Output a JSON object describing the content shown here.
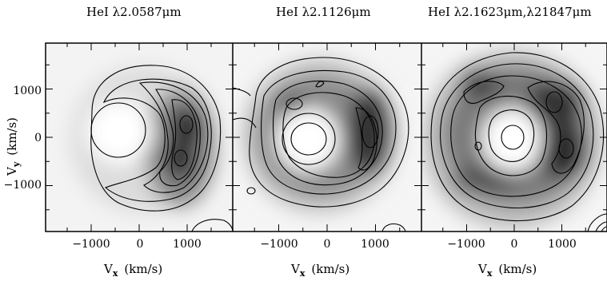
{
  "figure": {
    "panels": [
      {
        "title": "HeI λ2.0587μm"
      },
      {
        "title": "HeI λ2.1126μm"
      },
      {
        "title": "HeI λ2.1623μm,λ21847μm"
      }
    ],
    "y_axis_label": "V_y (km/s)",
    "y_axis_main": "V",
    "y_axis_sub": "y",
    "y_axis_unit": "(km/s)",
    "x_axis_main": "V",
    "x_axis_sub": "x",
    "x_axis_unit": "(km/s)",
    "y_ticks": [
      "1000",
      "0",
      "−1000"
    ],
    "x_ticks": [
      "−1000",
      "0",
      "1000"
    ]
  },
  "chart_data": [
    {
      "type": "heatmap",
      "title": "HeI λ2.0587μm",
      "xlabel": "V_x (km/s)",
      "ylabel": "V_y (km/s)",
      "xlim": [
        -1950,
        1950
      ],
      "ylim": [
        -1950,
        1950
      ],
      "x_ticks": [
        -1000,
        0,
        1000
      ],
      "y_ticks": [
        1000,
        0,
        -1000
      ],
      "description_values": {
        "peak_positions": [
          [
            950,
            300
          ],
          [
            850,
            -450
          ]
        ]
      }
    },
    {
      "type": "heatmap",
      "title": "HeI λ2.1126μm",
      "xlabel": "V_x (km/s)",
      "ylabel": "",
      "xlim": [
        -1950,
        1950
      ],
      "ylim": [
        -1950,
        1950
      ],
      "x_ticks": [
        -1000,
        0,
        1000
      ],
      "y_ticks": [
        1000,
        0,
        -1000
      ],
      "description_values": {
        "peak_positions": [
          [
            950,
            250
          ],
          [
            -650,
            800
          ]
        ]
      }
    },
    {
      "type": "heatmap",
      "title": "HeI λ2.1623μm,λ21847μm",
      "xlabel": "V_x (km/s)",
      "ylabel": "",
      "xlim": [
        -1950,
        1950
      ],
      "ylim": [
        -1950,
        1950
      ],
      "x_ticks": [
        -1000,
        0,
        1000
      ],
      "y_ticks": [
        1000,
        0,
        -1000
      ],
      "description_values": {
        "peak_positions": [
          [
            850,
            750
          ],
          [
            1050,
            -250
          ],
          [
            -550,
            1200
          ]
        ]
      }
    }
  ]
}
